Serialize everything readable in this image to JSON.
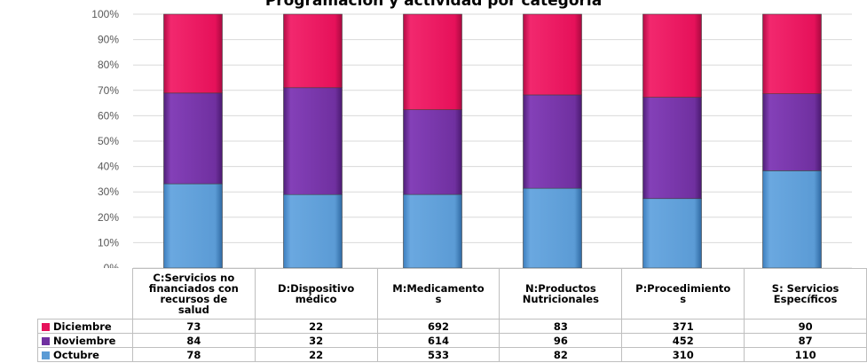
{
  "title": "Programación y actividad por categoría",
  "colors": {
    "Octubre": "#5b9bd5",
    "Noviembre": "#7030a0",
    "Diciembre": "#e6115a"
  },
  "chart_data": {
    "type": "bar",
    "stacked": "percent",
    "categories": [
      "C:Servicios no financiados con recursos de salud",
      "D:Dispositivo médico",
      "M:Medicamentos",
      "N:Productos Nutricionales",
      "P:Procedimientos",
      "S: Servicios Específicos"
    ],
    "category_labels": [
      [
        "C:Servicios no",
        "financiados con",
        "recursos de",
        "salud"
      ],
      [
        "D:Dispositivo",
        "médico"
      ],
      [
        "M:Medicamento",
        "s"
      ],
      [
        "N:Productos",
        "Nutricionales"
      ],
      [
        "P:Procedimiento",
        "s"
      ],
      [
        "S: Servicios",
        "Específicos"
      ]
    ],
    "series": [
      {
        "name": "Octubre",
        "values": [
          78,
          22,
          533,
          82,
          310,
          110
        ]
      },
      {
        "name": "Noviembre",
        "values": [
          84,
          32,
          614,
          96,
          452,
          87
        ]
      },
      {
        "name": "Diciembre",
        "values": [
          73,
          22,
          692,
          83,
          371,
          90
        ]
      }
    ],
    "table_order": [
      "Diciembre",
      "Noviembre",
      "Octubre"
    ],
    "y_ticks": [
      "0%",
      "10%",
      "20%",
      "30%",
      "40%",
      "50%",
      "60%",
      "70%",
      "80%",
      "90%",
      "100%"
    ],
    "ylim": [
      0,
      100
    ],
    "grid": true,
    "legend": "data-table"
  }
}
